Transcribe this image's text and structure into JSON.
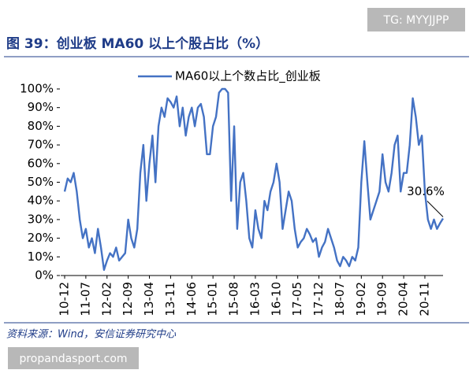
{
  "chart_data": {
    "type": "line",
    "title": "图 39：创业板 MA60 以上个股占比（%）",
    "source": "资料来源：Wind，安信证券研究中心",
    "watermark_top": "TG: MYYJJPP",
    "watermark_bottom": "propandasport.com",
    "categories": [
      "10-12",
      null,
      null,
      null,
      null,
      null,
      null,
      "11-07",
      null,
      null,
      null,
      null,
      null,
      null,
      "12-02",
      null,
      null,
      null,
      null,
      null,
      null,
      "12-09",
      null,
      null,
      null,
      null,
      null,
      null,
      "13-04",
      null,
      null,
      null,
      null,
      null,
      null,
      "13-11",
      null,
      null,
      null,
      null,
      null,
      null,
      "14-06",
      null,
      null,
      null,
      null,
      null,
      null,
      "15-01",
      null,
      null,
      null,
      null,
      null,
      null,
      "15-08",
      null,
      null,
      null,
      null,
      null,
      null,
      "16-03",
      null,
      null,
      null,
      null,
      null,
      null,
      "16-10",
      null,
      null,
      null,
      null,
      null,
      null,
      "17-05",
      null,
      null,
      null,
      null,
      null,
      null,
      "17-12",
      null,
      null,
      null,
      null,
      null,
      null,
      "18-07",
      null,
      null,
      null,
      null,
      null,
      null,
      "19-02",
      null,
      null,
      null,
      null,
      null,
      null,
      "19-09",
      null,
      null,
      null,
      null,
      null,
      null,
      "20-04",
      null,
      null,
      null,
      null,
      null,
      null,
      "20-11",
      null,
      null,
      null,
      null,
      null,
      null
    ],
    "series": [
      {
        "name": "MA60以上个数占比_创业板",
        "color": "#4472c4",
        "values": [
          45,
          52,
          50,
          55,
          45,
          30,
          20,
          25,
          15,
          20,
          12,
          25,
          15,
          3,
          8,
          12,
          10,
          15,
          8,
          10,
          12,
          30,
          20,
          15,
          25,
          55,
          70,
          40,
          60,
          75,
          50,
          80,
          90,
          85,
          95,
          93,
          90,
          96,
          80,
          90,
          75,
          85,
          90,
          80,
          90,
          92,
          85,
          65,
          65,
          80,
          85,
          98,
          100,
          100,
          98,
          40,
          80,
          25,
          50,
          55,
          40,
          20,
          15,
          35,
          25,
          20,
          40,
          35,
          45,
          50,
          60,
          50,
          25,
          35,
          45,
          40,
          25,
          15,
          18,
          20,
          25,
          22,
          18,
          20,
          10,
          15,
          18,
          25,
          20,
          15,
          8,
          5,
          10,
          8,
          5,
          10,
          8,
          15,
          50,
          72,
          50,
          30,
          35,
          40,
          45,
          65,
          50,
          45,
          55,
          70,
          75,
          45,
          55,
          55,
          70,
          95,
          85,
          70,
          75,
          45,
          30,
          25,
          30,
          25,
          28,
          30.6
        ],
        "value_labels": [
          null,
          null,
          null,
          null,
          null,
          null,
          null,
          null,
          null,
          null,
          null,
          null,
          null,
          null,
          null,
          null,
          null,
          null,
          null,
          null,
          null,
          null,
          null,
          null,
          null,
          null,
          null,
          null,
          null,
          null,
          null,
          null,
          null,
          null,
          null,
          null,
          null,
          null,
          null,
          null,
          null,
          null,
          null,
          null,
          null,
          null,
          null,
          null,
          null,
          null,
          null,
          null,
          null,
          null,
          null,
          null,
          null,
          null,
          null,
          null,
          null,
          null,
          null,
          null,
          null,
          null,
          null,
          null,
          null,
          null,
          null,
          null,
          null,
          null,
          null,
          null,
          null,
          null,
          null,
          null,
          null,
          null,
          null,
          null,
          null,
          null,
          null,
          null,
          null,
          null,
          null,
          null,
          null,
          null,
          null,
          null,
          null,
          null,
          null,
          null,
          null,
          null,
          null,
          null,
          null,
          null,
          null,
          null,
          null,
          null,
          null,
          null,
          null,
          null,
          null,
          null,
          null,
          null,
          null,
          null,
          null,
          null,
          null,
          null,
          null,
          "30.6%"
        ]
      }
    ],
    "ylim": [
      0,
      100
    ],
    "yticks": [
      {
        "value": 0,
        "label": "0%"
      },
      {
        "value": 10,
        "label": "10%"
      },
      {
        "value": 20,
        "label": "20%"
      },
      {
        "value": 30,
        "label": "30%"
      },
      {
        "value": 40,
        "label": "40%"
      },
      {
        "value": 50,
        "label": "50%"
      },
      {
        "value": 60,
        "label": "60%"
      },
      {
        "value": 70,
        "label": "70%"
      },
      {
        "value": 80,
        "label": "80%"
      },
      {
        "value": 90,
        "label": "90%"
      },
      {
        "value": 100,
        "label": "100%"
      }
    ],
    "legend": "top"
  }
}
